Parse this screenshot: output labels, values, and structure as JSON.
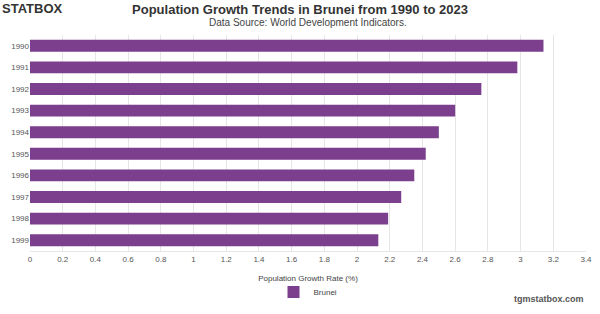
{
  "chart_data": {
    "type": "bar",
    "orientation": "horizontal",
    "title": "Population Growth Trends in Brunei from 1990 to 2023",
    "subtitle": "Data Source: World Development Indicators.",
    "annotations": [
      "STATBOX",
      "tgmstatbox.com"
    ],
    "x_label": "Population Growth Rate (%)",
    "categories": [
      "1990",
      "1991",
      "1992",
      "1993",
      "1994",
      "1995",
      "1996",
      "1997",
      "1998",
      "1999"
    ],
    "series": [
      {
        "name": "Brunei",
        "color": "#7b3f8e",
        "values": [
          3.14,
          2.98,
          2.76,
          2.6,
          2.5,
          2.42,
          2.35,
          2.27,
          2.19,
          2.13
        ]
      }
    ],
    "xlim": [
      0,
      3.4
    ],
    "xticks": [
      0,
      0.2,
      0.4,
      0.6,
      0.8,
      1,
      1.2,
      1.4,
      1.6,
      1.8,
      2,
      2.2,
      2.4,
      2.6,
      2.8,
      3,
      3.2,
      3.4
    ],
    "grid": true,
    "legend": "bottom"
  }
}
